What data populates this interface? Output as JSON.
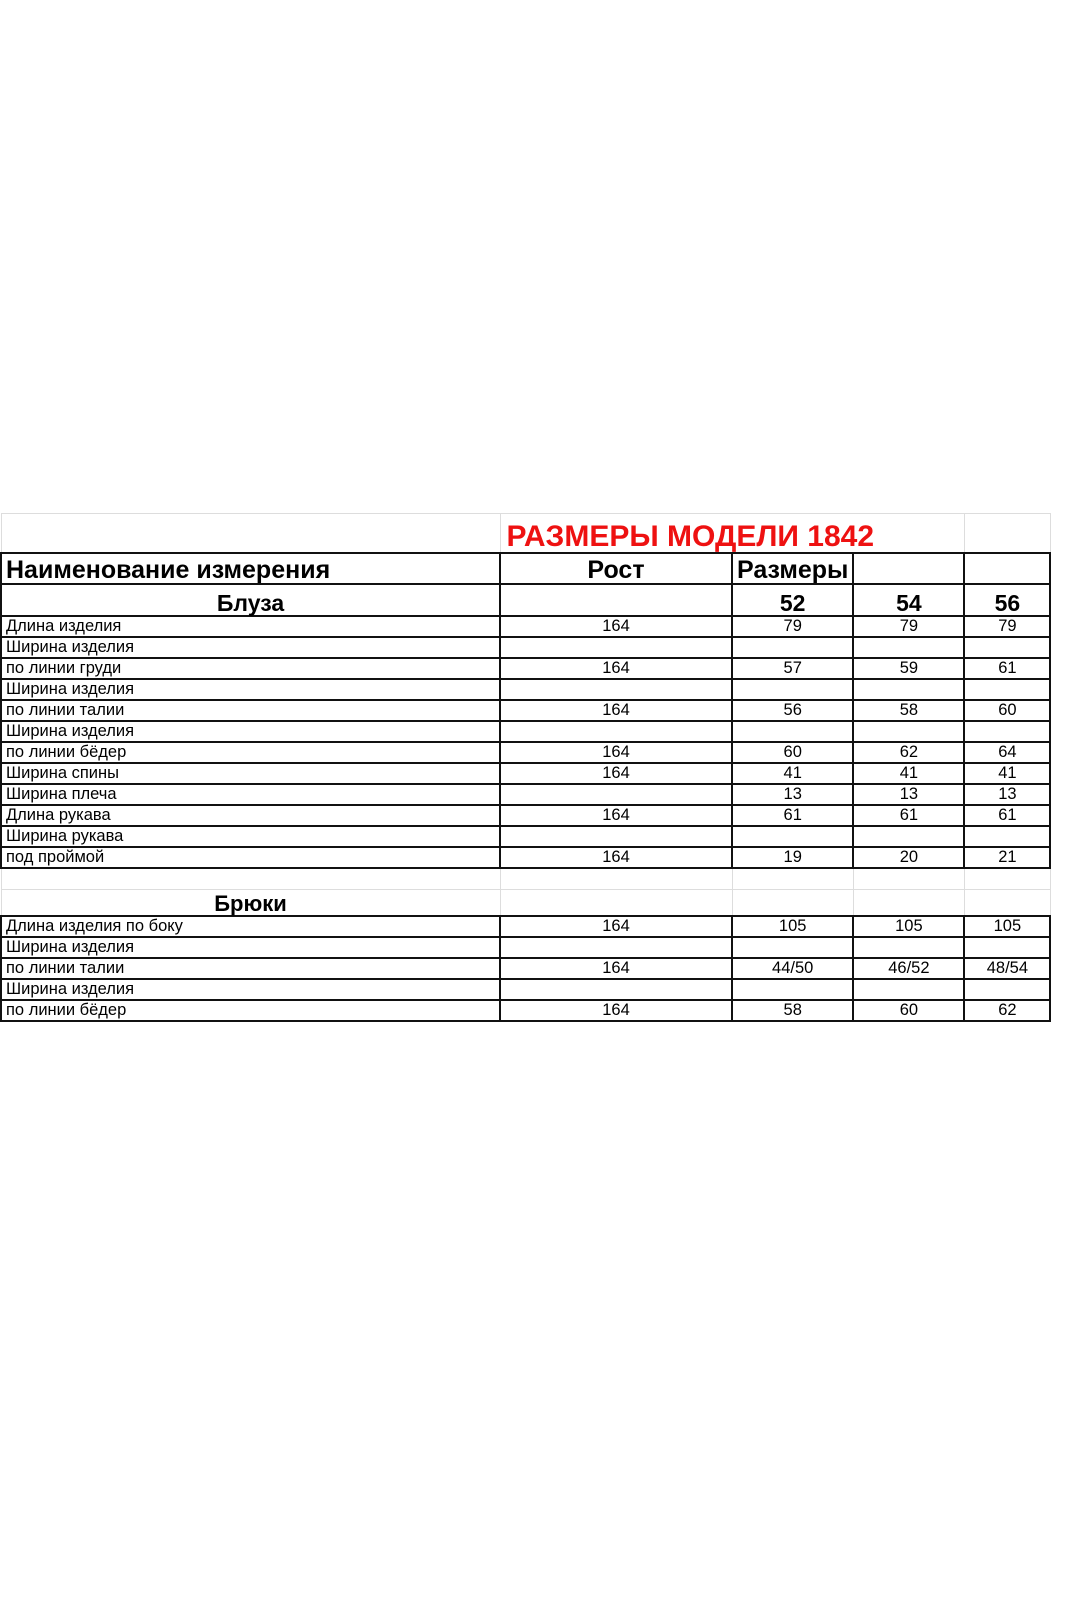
{
  "title": "РАЗМЕРЫ МОДЕЛИ 1842",
  "header": {
    "name": "Наименование измерения",
    "height": "Рост",
    "sizes": "Размеры"
  },
  "sizes": [
    "52",
    "54",
    "56"
  ],
  "sections": [
    {
      "label": "Блуза",
      "rows": [
        {
          "name": "Длина изделия",
          "height": "164",
          "values": [
            "79",
            "79",
            "79"
          ]
        },
        {
          "name": "Ширина изделия",
          "height": "",
          "values": [
            "",
            "",
            ""
          ]
        },
        {
          "name": "по линии груди",
          "height": "164",
          "values": [
            "57",
            "59",
            "61"
          ]
        },
        {
          "name": "Ширина изделия",
          "height": "",
          "values": [
            "",
            "",
            ""
          ]
        },
        {
          "name": "по линии талии",
          "height": "164",
          "values": [
            "56",
            "58",
            "60"
          ]
        },
        {
          "name": "Ширина изделия",
          "height": "",
          "values": [
            "",
            "",
            ""
          ]
        },
        {
          "name": "по линии бёдер",
          "height": "164",
          "values": [
            "60",
            "62",
            "64"
          ]
        },
        {
          "name": "Ширина спины",
          "height": "164",
          "values": [
            "41",
            "41",
            "41"
          ]
        },
        {
          "name": "Ширина плеча",
          "height": "",
          "values": [
            "13",
            "13",
            "13"
          ]
        },
        {
          "name": "Длина рукава",
          "height": "164",
          "values": [
            "61",
            "61",
            "61"
          ]
        },
        {
          "name": "Ширина рукава",
          "height": "",
          "values": [
            "",
            "",
            ""
          ]
        },
        {
          "name": "под проймой",
          "height": "164",
          "values": [
            "19",
            "20",
            "21"
          ]
        }
      ]
    },
    {
      "label": "Брюки",
      "rows": [
        {
          "name": "Длина изделия по боку",
          "height": "164",
          "values": [
            "105",
            "105",
            "105"
          ]
        },
        {
          "name": "Ширина изделия",
          "height": "",
          "values": [
            "",
            "",
            ""
          ]
        },
        {
          "name": "по линии талии",
          "height": "164",
          "values": [
            "44/50",
            "46/52",
            "48/54"
          ]
        },
        {
          "name": "Ширина изделия",
          "height": "",
          "values": [
            "",
            "",
            ""
          ]
        },
        {
          "name": "по линии бёдер",
          "height": "164",
          "values": [
            "58",
            "60",
            "62"
          ]
        }
      ]
    }
  ],
  "colors": {
    "title": "#ee1111",
    "border": "#111111"
  }
}
